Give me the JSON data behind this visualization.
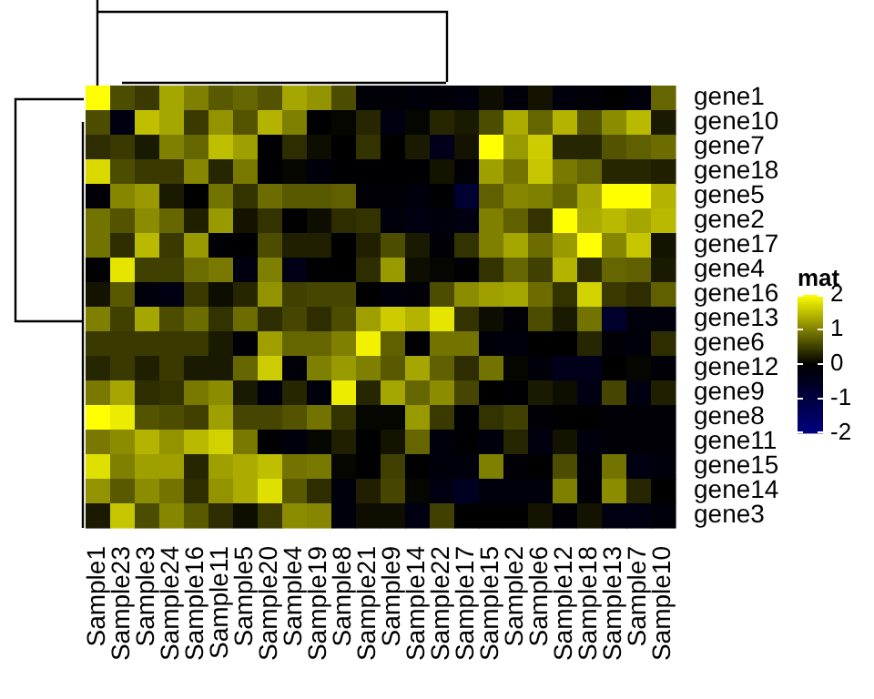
{
  "chart_data": {
    "type": "heatmap",
    "clabel": "mat",
    "clim": [
      -2,
      2
    ],
    "cticks": [
      -2,
      -1,
      0,
      1,
      2
    ],
    "colors": [
      "#000080",
      "#000000",
      "#ffff00"
    ],
    "categories": [
      "Sample1",
      "Sample23",
      "Sample3",
      "Sample24",
      "Sample16",
      "Sample11",
      "Sample5",
      "Sample20",
      "Sample4",
      "Sample19",
      "Sample8",
      "Sample21",
      "Sample9",
      "Sample14",
      "Sample22",
      "Sample17",
      "Sample15",
      "Sample2",
      "Sample6",
      "Sample12",
      "Sample18",
      "Sample13",
      "Sample7",
      "Sample10"
    ],
    "y_categories": [
      "gene1",
      "gene10",
      "gene7",
      "gene18",
      "gene5",
      "gene2",
      "gene17",
      "gene4",
      "gene16",
      "gene13",
      "gene6",
      "gene12",
      "gene9",
      "gene8",
      "gene11",
      "gene15",
      "gene14",
      "gene3"
    ],
    "cells": [
      [
        2,
        0.6,
        0.45,
        1.3,
        1,
        0.7,
        0.8,
        0.65,
        1.3,
        1.15,
        0.6,
        -0.1,
        -0.1,
        -0.15,
        -0.1,
        -0.2,
        0.1,
        -0.15,
        0.15,
        -0.2,
        -0.1,
        0,
        -0.15,
        0.8
      ],
      [
        0.6,
        -0.3,
        1.5,
        1.3,
        0.45,
        1.15,
        0.65,
        1.4,
        1,
        0,
        0.05,
        0.3,
        -0.25,
        0.05,
        0.3,
        0.2,
        0.6,
        1.35,
        0.8,
        1.4,
        0.65,
        1.1,
        1.45,
        0.2
      ],
      [
        0.35,
        0.45,
        0.2,
        1,
        0.8,
        1.5,
        1.25,
        -0.05,
        0.35,
        0.1,
        0,
        0.4,
        0,
        0.2,
        -0.4,
        0.15,
        2,
        1.2,
        1.6,
        0.3,
        0.3,
        0.65,
        0.75,
        0.85
      ],
      [
        1.7,
        0.6,
        0.45,
        0.45,
        1.05,
        0.3,
        0.95,
        -0.05,
        0.05,
        -0.2,
        -0.05,
        -0.05,
        -0.05,
        -0.05,
        0.15,
        -0.1,
        1.25,
        0.9,
        1.55,
        0.95,
        0.8,
        0.3,
        0.3,
        0.25
      ],
      [
        -0.1,
        1.05,
        1.2,
        0.2,
        0,
        0.9,
        0.4,
        0.85,
        0.7,
        0.7,
        0.75,
        -0.1,
        -0.1,
        -0.2,
        -0.05,
        -0.8,
        0.75,
        1.05,
        1,
        0.8,
        1.3,
        2,
        2,
        1.4
      ],
      [
        0.9,
        0.65,
        1.1,
        0.8,
        0.25,
        1.2,
        0.15,
        0.4,
        0,
        0.1,
        0.35,
        0.4,
        -0.15,
        -0.3,
        -0.15,
        -0.25,
        1,
        0.75,
        0.4,
        2,
        1.35,
        1.45,
        1.3,
        1.45
      ],
      [
        0.9,
        0.35,
        1.45,
        0.45,
        1.2,
        -0.1,
        -0.05,
        0.6,
        0.25,
        0.25,
        0,
        0.25,
        0.6,
        0.2,
        -0.1,
        0.4,
        1,
        1.3,
        0.85,
        1.2,
        2,
        1.05,
        1.55,
        0.15
      ],
      [
        0,
        1.8,
        0.5,
        0.5,
        0.85,
        0.95,
        -0.25,
        1,
        -0.35,
        0,
        0,
        0.35,
        1.2,
        0.1,
        0.05,
        0,
        0.4,
        0.8,
        0.5,
        1.4,
        0.35,
        0.8,
        0.75,
        0.2
      ],
      [
        0.15,
        0.7,
        -0.15,
        -0.3,
        0.45,
        0.1,
        0.3,
        1.15,
        0.5,
        0.55,
        0.55,
        0,
        -0.2,
        -0.1,
        0.6,
        1.1,
        1.25,
        1.3,
        0.85,
        0.4,
        1.65,
        0.45,
        0.35,
        0.75
      ],
      [
        1,
        0.5,
        1.3,
        0.6,
        0.85,
        0.4,
        0.85,
        0.35,
        0.55,
        0.35,
        0.6,
        1.25,
        1.6,
        1.4,
        1.8,
        0.4,
        0.1,
        -0.1,
        0.6,
        0.2,
        0.9,
        -0.7,
        -0.2,
        -0.15
      ],
      [
        0.45,
        0.45,
        0.45,
        0.45,
        0.45,
        0.2,
        -0.1,
        1.25,
        0.8,
        0.8,
        1,
        1.9,
        0.75,
        0,
        0.9,
        0.9,
        -0.15,
        -0.2,
        0,
        0,
        0.3,
        -0.1,
        -0.15,
        0.35
      ],
      [
        0.3,
        0.45,
        0.25,
        0.45,
        0.2,
        0.2,
        0.8,
        1.6,
        -0.15,
        1,
        1.2,
        1,
        0.7,
        1.3,
        0.75,
        0.35,
        0.9,
        0.05,
        -0.15,
        -0.4,
        -0.4,
        0,
        0.05,
        -0.1
      ],
      [
        0.95,
        1.3,
        0.35,
        0.4,
        0.95,
        1.1,
        0.2,
        -0.2,
        0.3,
        -0.2,
        1.85,
        0.3,
        1.3,
        0.8,
        1.1,
        0.55,
        0,
        -0.05,
        0.2,
        0.1,
        -0.3,
        0.55,
        -0.25,
        0.25
      ],
      [
        2,
        1.85,
        0.65,
        0.6,
        0.5,
        1.25,
        0.55,
        0.55,
        0.65,
        0.9,
        0.4,
        0.05,
        0.05,
        1.2,
        0.45,
        -0.05,
        0.4,
        0.5,
        -0.1,
        0,
        0,
        -0.1,
        -0.1,
        -0.1
      ],
      [
        0.95,
        1.1,
        1.4,
        1.15,
        1.45,
        1.65,
        0.95,
        0,
        -0.2,
        0.05,
        0.25,
        0,
        0.15,
        0.8,
        -0.15,
        -0.05,
        -0.2,
        0.3,
        -0.25,
        0.15,
        -0.2,
        -0.1,
        -0.1,
        -0.1
      ],
      [
        1.75,
        1,
        1.25,
        1.25,
        0.3,
        1.25,
        1.35,
        1.5,
        0.9,
        0.95,
        0.05,
        0,
        0.5,
        -0.05,
        -0.15,
        -0.2,
        1,
        -0.1,
        0,
        0.6,
        -0.1,
        0.9,
        -0.3,
        -0.2
      ],
      [
        1.15,
        0.7,
        1.1,
        0.9,
        0.35,
        1.15,
        1.35,
        1.75,
        0.7,
        0.35,
        -0.2,
        0.25,
        0.55,
        0.05,
        -0.3,
        -0.5,
        -0.2,
        -0.2,
        -0.2,
        1,
        -0.1,
        1.1,
        0.3,
        0
      ],
      [
        0.2,
        1.55,
        0.6,
        1.05,
        0.7,
        0.35,
        0.1,
        0.45,
        1.1,
        1.05,
        -0.2,
        0.1,
        0.1,
        -0.3,
        0.5,
        0,
        0,
        0,
        0.15,
        -0.1,
        0.15,
        -0.3,
        -0.3,
        -0.15
      ]
    ]
  }
}
